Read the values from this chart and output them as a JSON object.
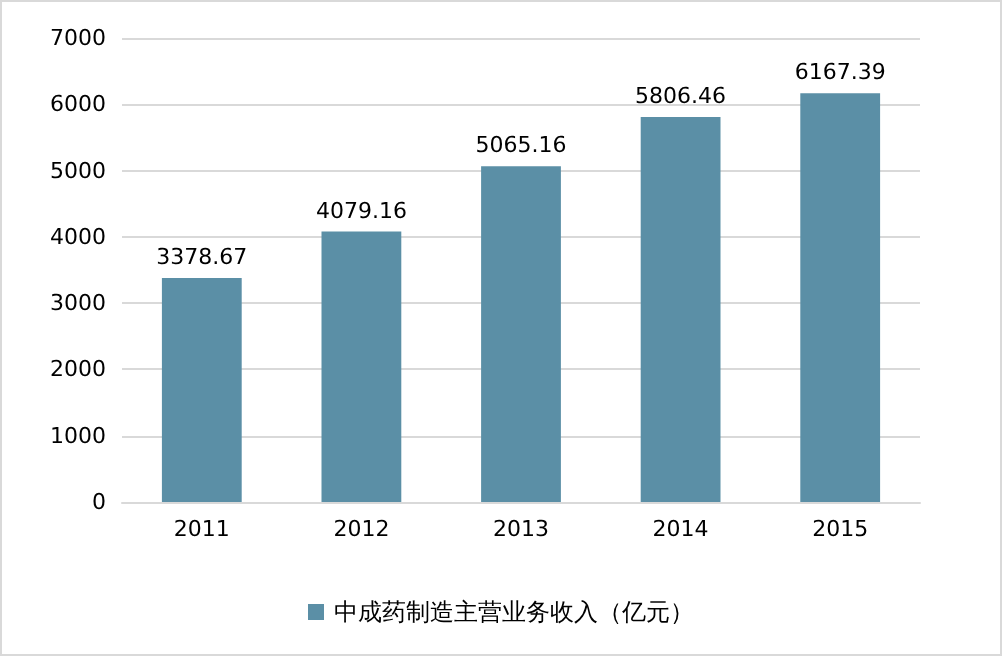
{
  "chart_data": {
    "type": "bar",
    "categories": [
      "2011",
      "2012",
      "2013",
      "2014",
      "2015"
    ],
    "series": [
      {
        "name": "中成药制造主营业务收入（亿元）",
        "color": "#5b8fa6",
        "values": [
          3378.67,
          4079.16,
          5065.16,
          5806.46,
          6167.39
        ]
      }
    ],
    "ylim": [
      0,
      7000
    ],
    "yticks": [
      0,
      1000,
      2000,
      3000,
      4000,
      5000,
      6000,
      7000
    ],
    "grid": "y",
    "legend": "bottom",
    "data_labels": true
  }
}
